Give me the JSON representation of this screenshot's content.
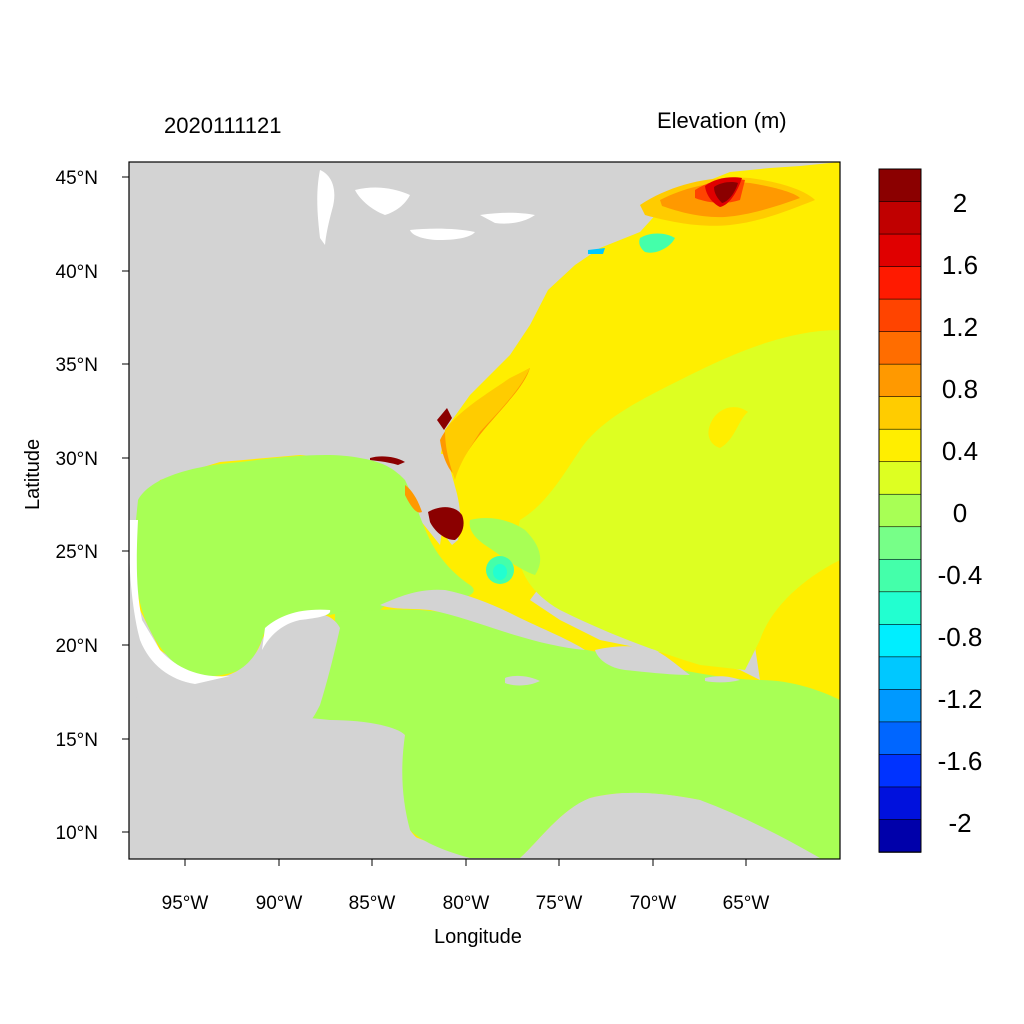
{
  "header": {
    "date": "2020111121",
    "variable": "Elevation (m)"
  },
  "axes": {
    "xlabel": "Longitude",
    "ylabel": "Latitude",
    "lon_ticks": [
      "95°W",
      "90°W",
      "85°W",
      "80°W",
      "75°W",
      "70°W",
      "65°W"
    ],
    "lat_ticks": [
      "45°N",
      "40°N",
      "35°N",
      "30°N",
      "25°N",
      "20°N",
      "15°N",
      "10°N"
    ]
  },
  "colorbar": {
    "labels": [
      "2",
      "1.6",
      "1.2",
      "0.8",
      "0.4",
      "0",
      "-0.4",
      "-0.8",
      "-1.2",
      "-1.6",
      "-2"
    ],
    "colors": [
      "#8b0000",
      "#c00000",
      "#e00000",
      "#ff1a00",
      "#ff4400",
      "#ff6d00",
      "#ff9900",
      "#ffcc00",
      "#ffee00",
      "#ddff22",
      "#a8ff55",
      "#77ff88",
      "#44ffaa",
      "#22ffd0",
      "#00eeff",
      "#00c8ff",
      "#0099ff",
      "#0066ff",
      "#0033ff",
      "#0011dd",
      "#0000aa"
    ]
  },
  "colors": {
    "land": "#d3d3d3",
    "gulf": "#a8ff55",
    "atlantic": "#ffee00",
    "offshore": "#ddff22",
    "surge_high": "#8b0000"
  }
}
